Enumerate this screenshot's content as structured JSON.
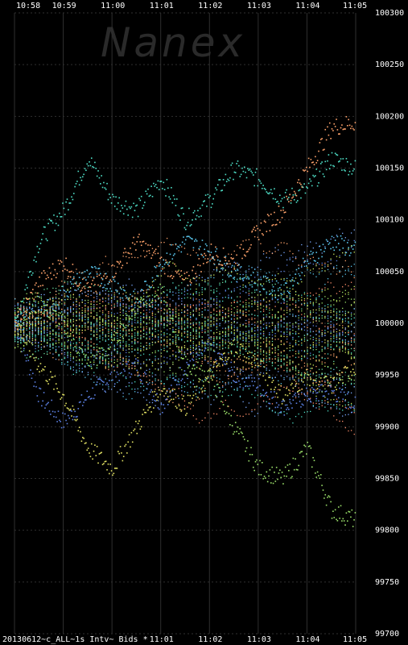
{
  "watermark": "Nanex",
  "footer_label": "20130612~c_ALL~1s Intv~ Bids *",
  "chart_data": {
    "type": "scatter",
    "title": "",
    "x_ticks_top": [
      "10:58",
      "10:59",
      "11:00",
      "11:01",
      "11:02",
      "11:03",
      "11:04",
      "11:05"
    ],
    "x_ticks_bottom": [
      "11:01",
      "11:02",
      "11:03",
      "11:04",
      "11:05"
    ],
    "y_ticks": [
      "100300",
      "100250",
      "100200",
      "100150",
      "100100",
      "100050",
      "100000",
      "99950",
      "99900",
      "99850",
      "99800",
      "99750",
      "99700"
    ],
    "ylim": [
      99700,
      100300
    ],
    "x_range_minutes": [
      "10:58",
      "11:05"
    ],
    "grid": true,
    "series_colors": [
      "#5b7fe0",
      "#4fe0c8",
      "#9be06a",
      "#ffa36b",
      "#e0e062",
      "#58c2e8",
      "#c9e85a",
      "#ff8f6b",
      "#6be0a0",
      "#7aa8ff"
    ],
    "series": [
      {
        "x": [
          0,
          0.5,
          1,
          1.5,
          2,
          2.5,
          3,
          3.5,
          4,
          4.5,
          5,
          5.5,
          6,
          6.5,
          7
        ],
        "values": [
          100000,
          99930,
          99905,
          99930,
          99950,
          99960,
          99920,
          99960,
          99980,
          99950,
          99940,
          99920,
          99930,
          99935,
          99920
        ]
      },
      {
        "x": [
          0,
          0.5,
          1,
          1.5,
          2,
          2.5,
          3,
          3.5,
          4,
          4.5,
          5,
          5.5,
          6,
          6.5,
          7
        ],
        "values": [
          100000,
          100080,
          100110,
          100160,
          100120,
          100110,
          100140,
          100100,
          100120,
          100150,
          100140,
          100120,
          100130,
          100160,
          100150
        ]
      },
      {
        "x": [
          0,
          0.5,
          1,
          1.5,
          2,
          2.5,
          3,
          3.5,
          4,
          4.5,
          5,
          5.5,
          6,
          6.5,
          7
        ],
        "values": [
          100000,
          100020,
          100000,
          99960,
          99980,
          100020,
          100030,
          99960,
          99950,
          99900,
          99860,
          99850,
          99880,
          99820,
          99810
        ]
      },
      {
        "x": [
          0,
          0.5,
          1,
          1.5,
          2,
          2.5,
          3,
          3.5,
          4,
          4.5,
          5,
          5.5,
          6,
          6.5,
          7
        ],
        "values": [
          100000,
          100040,
          100060,
          100030,
          100050,
          100080,
          100060,
          100040,
          100070,
          100060,
          100090,
          100110,
          100150,
          100190,
          100195
        ]
      },
      {
        "x": [
          0,
          0.5,
          1,
          1.5,
          2,
          2.5,
          3,
          3.5,
          4,
          4.5,
          5,
          5.5,
          6,
          6.5,
          7
        ],
        "values": [
          100000,
          99960,
          99930,
          99880,
          99860,
          99900,
          99940,
          99920,
          99950,
          99980,
          99960,
          99930,
          99950,
          99940,
          99960
        ]
      },
      {
        "x": [
          0,
          0.5,
          1,
          1.5,
          2,
          2.5,
          3,
          3.5,
          4,
          4.5,
          5,
          5.5,
          6,
          6.5,
          7
        ],
        "values": [
          100000,
          100010,
          100030,
          100050,
          100040,
          100020,
          100060,
          100080,
          100070,
          100050,
          100040,
          100030,
          100060,
          100080,
          100070
        ]
      }
    ]
  }
}
